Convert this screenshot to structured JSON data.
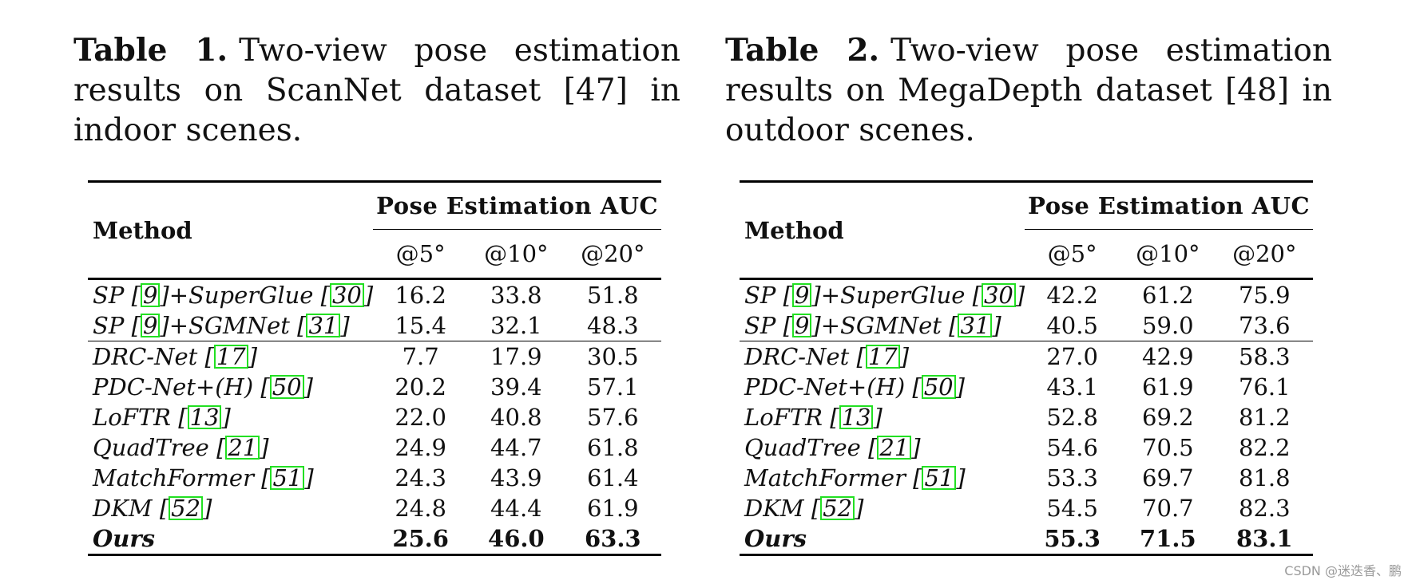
{
  "tables": [
    {
      "label": "Table 1.",
      "caption": "Two-view pose estimation results on ScanNet dataset [47] in indoor scenes.",
      "header_method": "Method",
      "header_group": "Pose Estimation AUC",
      "columns": [
        "@5°",
        "@10°",
        "@20°"
      ],
      "rows": [
        {
          "method": "SP [9]+SuperGlue [30]",
          "values": [
            "16.2",
            "33.8",
            "51.8"
          ]
        },
        {
          "method": "SP [9]+SGMNet [31]",
          "values": [
            "15.4",
            "32.1",
            "48.3"
          ]
        },
        {
          "method": "DRC-Net [17]",
          "values": [
            "7.7",
            "17.9",
            "30.5"
          ]
        },
        {
          "method": "PDC-Net+(H) [50]",
          "values": [
            "20.2",
            "39.4",
            "57.1"
          ]
        },
        {
          "method": "LoFTR [13]",
          "values": [
            "22.0",
            "40.8",
            "57.6"
          ]
        },
        {
          "method": "QuadTree [21]",
          "values": [
            "24.9",
            "44.7",
            "61.8"
          ]
        },
        {
          "method": "MatchFormer [51]",
          "values": [
            "24.3",
            "43.9",
            "61.4"
          ]
        },
        {
          "method": "DKM [52]",
          "values": [
            "24.8",
            "44.4",
            "61.9"
          ]
        },
        {
          "method": "Ours",
          "values": [
            "25.6",
            "46.0",
            "63.3"
          ]
        }
      ]
    },
    {
      "label": "Table 2.",
      "caption": "Two-view pose estimation results on MegaDepth dataset [48] in outdoor scenes.",
      "header_method": "Method",
      "header_group": "Pose Estimation AUC",
      "columns": [
        "@5°",
        "@10°",
        "@20°"
      ],
      "rows": [
        {
          "method": "SP [9]+SuperGlue [30]",
          "values": [
            "42.2",
            "61.2",
            "75.9"
          ]
        },
        {
          "method": "SP [9]+SGMNet [31]",
          "values": [
            "40.5",
            "59.0",
            "73.6"
          ]
        },
        {
          "method": "DRC-Net [17]",
          "values": [
            "27.0",
            "42.9",
            "58.3"
          ]
        },
        {
          "method": "PDC-Net+(H) [50]",
          "values": [
            "43.1",
            "61.9",
            "76.1"
          ]
        },
        {
          "method": "LoFTR [13]",
          "values": [
            "52.8",
            "69.2",
            "81.2"
          ]
        },
        {
          "method": "QuadTree [21]",
          "values": [
            "54.6",
            "70.5",
            "82.2"
          ]
        },
        {
          "method": "MatchFormer [51]",
          "values": [
            "53.3",
            "69.7",
            "81.8"
          ]
        },
        {
          "method": "DKM [52]",
          "values": [
            "54.5",
            "70.7",
            "82.3"
          ]
        },
        {
          "method": "Ours",
          "values": [
            "55.3",
            "71.5",
            "83.1"
          ]
        }
      ]
    }
  ],
  "watermark": "CSDN @迷迭香、鹏",
  "colors": {
    "ref_box": "#22e022",
    "rule": "#000000",
    "text": "#111111"
  }
}
